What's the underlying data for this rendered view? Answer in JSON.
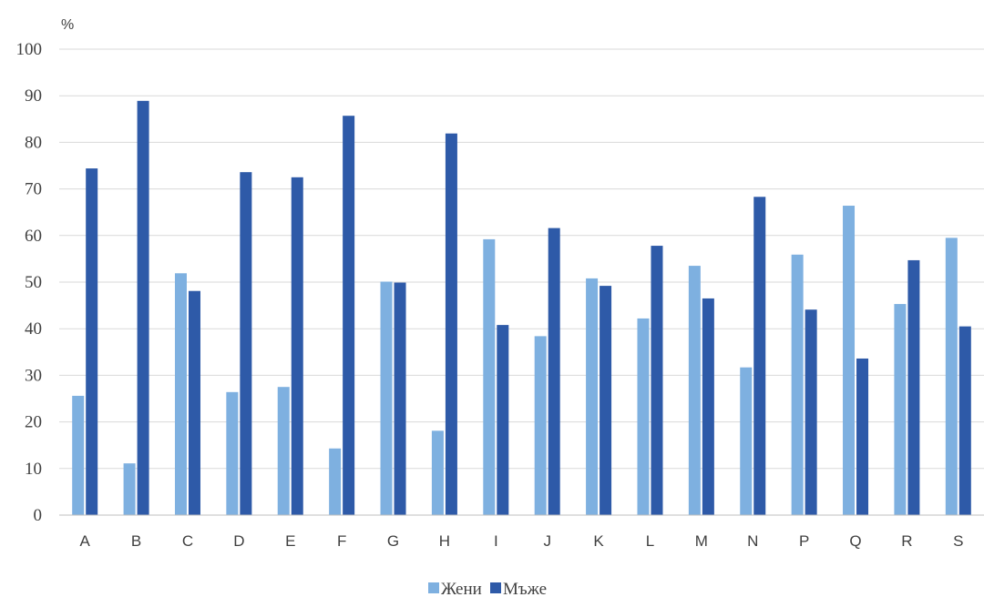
{
  "chart_data": {
    "type": "bar",
    "ylabel": "%",
    "ylim": [
      0,
      100
    ],
    "yticks": [
      0,
      10,
      20,
      30,
      40,
      50,
      60,
      70,
      80,
      90,
      100
    ],
    "grid": true,
    "legend_position": "bottom",
    "categories": [
      "A",
      "B",
      "C",
      "D",
      "E",
      "F",
      "G",
      "H",
      "I",
      "J",
      "K",
      "L",
      "M",
      "N",
      "P",
      "Q",
      "R",
      "S"
    ],
    "series": [
      {
        "name": "Жени",
        "color": "#7eb0e0",
        "values": [
          25.6,
          11.1,
          51.9,
          26.4,
          27.5,
          14.3,
          50.1,
          18.1,
          59.2,
          38.4,
          50.8,
          42.2,
          53.5,
          31.7,
          55.9,
          66.4,
          45.3,
          59.5
        ]
      },
      {
        "name": "Мъже",
        "color": "#2e5aa8",
        "values": [
          74.4,
          88.9,
          48.1,
          73.6,
          72.5,
          85.7,
          49.9,
          81.9,
          40.8,
          61.6,
          49.2,
          57.8,
          46.5,
          68.3,
          44.1,
          33.6,
          54.7,
          40.5
        ]
      }
    ]
  }
}
